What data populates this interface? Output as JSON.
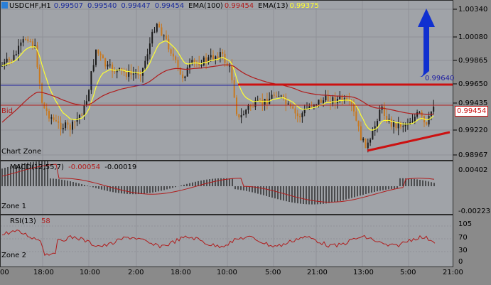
{
  "header": {
    "symbol": "USDCHF,H1",
    "ohlc": [
      "0.99507",
      "0.99540",
      "0.99447",
      "0.99454"
    ],
    "ema100_label": "EMA(100)",
    "ema100_value": "0.99454",
    "ema13_label": "EMA(13)",
    "ema13_value": "0.99375"
  },
  "main_panel": {
    "bid_label": "Bid",
    "zone_label": "Chart Zone",
    "level_label": "0.99640",
    "current_price": "0.99454",
    "price_ticks": [
      "1.00340",
      "1.00080",
      "0.99865",
      "0.99650",
      "0.99435",
      "0.99220",
      "0.98967"
    ]
  },
  "macd_panel": {
    "title": "MACD(12,55,7)",
    "value1": "-0.00054",
    "value2": "-0.00019",
    "zone_label": "Zone 1",
    "ticks": [
      "0.00402",
      "-0.00223"
    ]
  },
  "rsi_panel": {
    "title": "RSI(13)",
    "value": "58",
    "zone_label": "Zone 2",
    "ticks": [
      "105",
      "70",
      "30",
      "0"
    ]
  },
  "time_axis": [
    "00",
    "18:00",
    "10:00",
    "2:00",
    "18:00",
    "10:00",
    "5:00",
    "21:00",
    "13:00",
    "5:00",
    "21:00"
  ],
  "colors": {
    "background": "#a0a3a8",
    "up_candle": "#1a1a1a",
    "down_candle": "#c8781e",
    "ema13": "#ffff30",
    "ema100": "#b01c1c",
    "blue_line": "#2020a0",
    "red_line": "#cc1111",
    "arrow": "#1030d0"
  }
}
